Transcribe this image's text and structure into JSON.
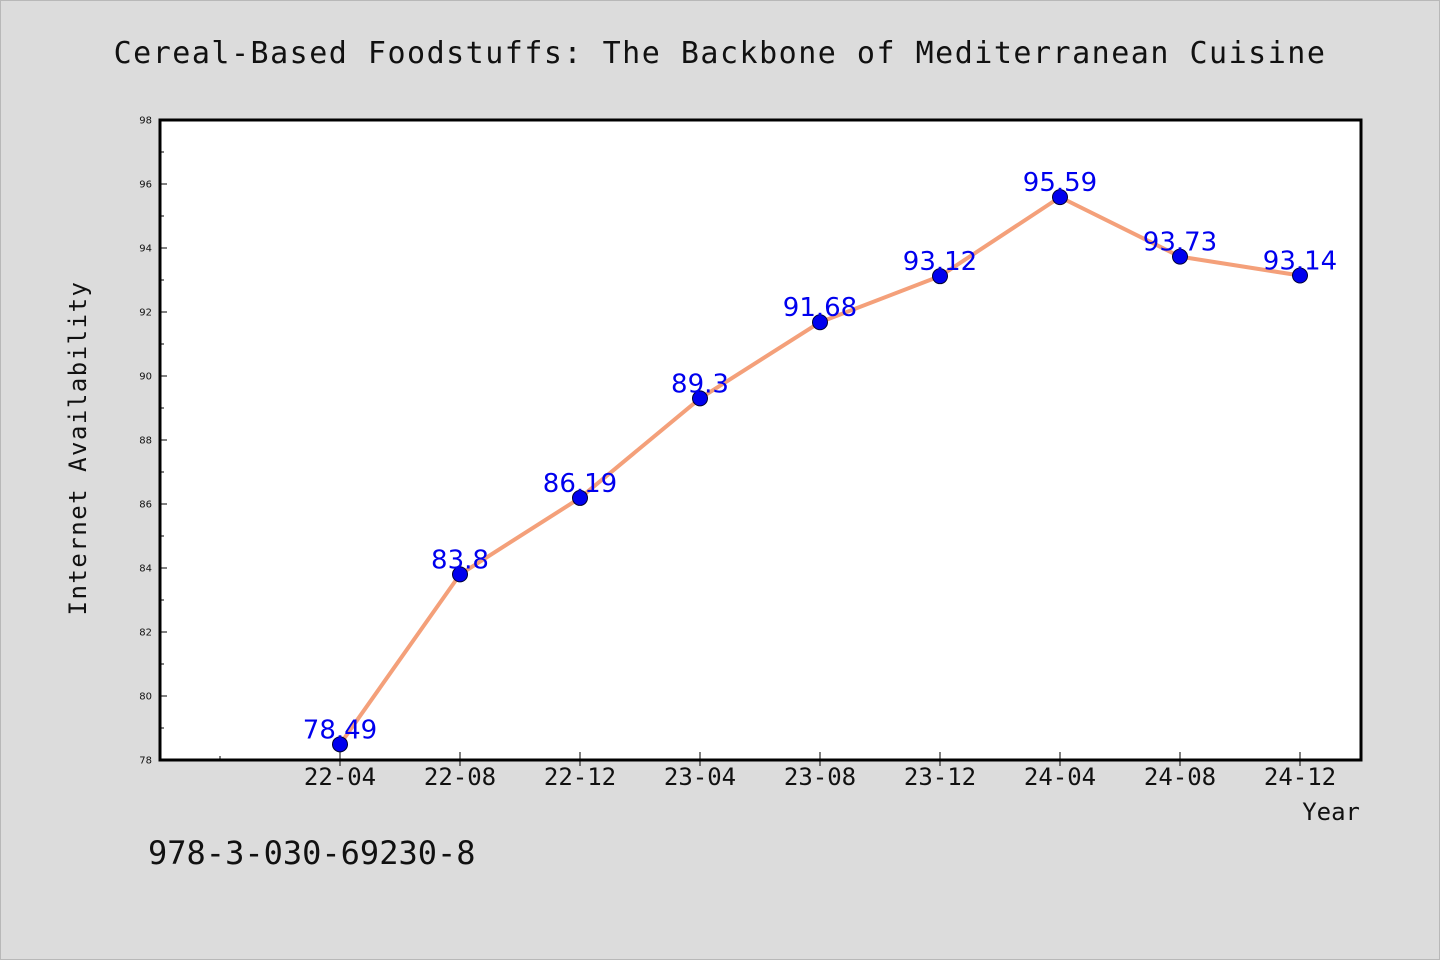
{
  "chart_data": {
    "type": "line",
    "title": "Cereal-Based Foodstuffs: The Backbone of Mediterranean Cuisine",
    "xlabel": "Year",
    "ylabel": "Internet Availability",
    "categories": [
      "22-04",
      "22-08",
      "22-12",
      "23-04",
      "23-08",
      "23-12",
      "24-04",
      "24-08",
      "24-12"
    ],
    "values": [
      78.49,
      83.8,
      86.19,
      89.3,
      91.68,
      93.12,
      95.59,
      93.73,
      93.14
    ],
    "value_labels": [
      "78.49",
      "83.8",
      "86.19",
      "89.3",
      "91.68",
      "93.12",
      "95.59",
      "93.73",
      "93.14"
    ],
    "ylim": [
      78,
      98
    ],
    "yticks": [
      78,
      80,
      82,
      84,
      86,
      88,
      90,
      92,
      94,
      96,
      98
    ],
    "grid": false,
    "legend": false,
    "colors": {
      "line": "#f4a07a",
      "marker": "#0000ee",
      "label": "#0000ee",
      "background": "#dcdcdc",
      "plot_background": "#ffffff"
    }
  },
  "footer": {
    "code": "978-3-030-69230-8"
  }
}
